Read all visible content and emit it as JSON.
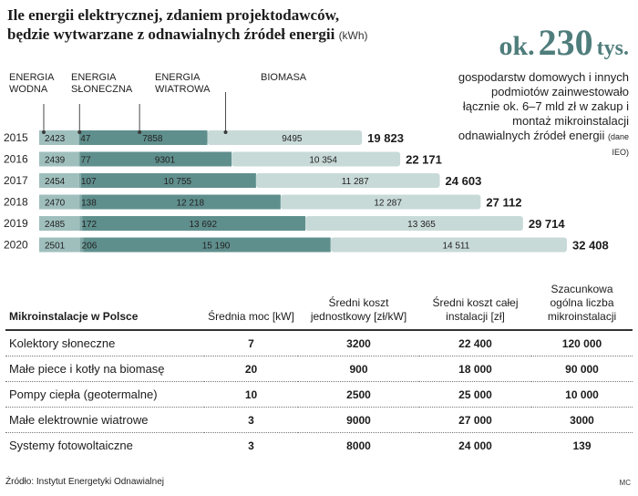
{
  "title": {
    "line1": "Ile energii elektrycznej, zdaniem projektodawców,",
    "line2": "będzie wytwarzane z odnawialnych źródeł energii",
    "unit": "(kWh)"
  },
  "side_note": {
    "prefix": "ok.",
    "number": "230",
    "suffix": "tys.",
    "text": "gospodarstw domowych i innych podmiotów zainwestowało łącznie ok. 6–7 mld zł w zakup i montaż mikroinstalacji odnawialnych źródeł energii",
    "source_small": "(dane IEO)"
  },
  "colors": {
    "wodna": "#9fbfbd",
    "sloneczna": "#7fa7a5",
    "wiatrowa": "#5f8f8d",
    "biomasa": "#c8dad8",
    "accent": "#4f7d7b"
  },
  "chart_data": {
    "type": "bar",
    "orientation": "horizontal",
    "stacked": true,
    "title": "Ile energii elektrycznej, zdaniem projektodawców, będzie wytwarzane z odnawialnych źródeł energii",
    "unit": "(kWh)",
    "categories": [
      "2015",
      "2016",
      "2017",
      "2018",
      "2019",
      "2020"
    ],
    "series": [
      {
        "name": "ENERGIA WODNA",
        "legend_lines": [
          "ENERGIA",
          "WODNA"
        ],
        "values": [
          2423,
          2439,
          2454,
          2470,
          2485,
          2501
        ],
        "value_labels": [
          "2423",
          "2439",
          "2454",
          "2470",
          "2485",
          "2501"
        ]
      },
      {
        "name": "ENERGIA SŁONECZNA",
        "legend_lines": [
          "ENERGIA",
          "SŁONECZNA"
        ],
        "values": [
          47,
          77,
          107,
          138,
          172,
          206
        ],
        "value_labels": [
          "47",
          "77",
          "107",
          "138",
          "172",
          "206"
        ]
      },
      {
        "name": "ENERGIA WIATROWA",
        "legend_lines": [
          "ENERGIA",
          "WIATROWA"
        ],
        "values": [
          7858,
          9301,
          10755,
          12218,
          13692,
          15190
        ],
        "value_labels": [
          "7858",
          "9301",
          "10 755",
          "12 218",
          "13 692",
          "15 190"
        ]
      },
      {
        "name": "BIOMASA",
        "legend_lines": [
          "BIOMASA"
        ],
        "values": [
          9495,
          10354,
          11287,
          12287,
          13365,
          14511
        ],
        "value_labels": [
          "9495",
          "10 354",
          "11 287",
          "12 287",
          "13 365",
          "14 511"
        ]
      }
    ],
    "totals": [
      19823,
      22171,
      24603,
      27112,
      29714,
      32408
    ],
    "total_labels": [
      "19 823",
      "22 171",
      "24 603",
      "27 112",
      "29 714",
      "32 408"
    ],
    "xlim": [
      0,
      32408
    ],
    "grid": false,
    "legend": "top"
  },
  "table": {
    "headers": [
      "Mikroinstalacje w Polsce",
      "Średnia moc [kW]",
      "Średni koszt jednostkowy [zł/kW]",
      "Średni koszt całej instalacji [zł]",
      "Szacunkowa ogólna liczba mikroinstalacji"
    ],
    "rows": [
      [
        "Kolektory słoneczne",
        "7",
        "3200",
        "22 400",
        "120 000"
      ],
      [
        "Małe piece i kotły na biomasę",
        "20",
        "900",
        "18 000",
        "90 000"
      ],
      [
        "Pompy ciepła (geotermalne)",
        "10",
        "2500",
        "25 000",
        "10 000"
      ],
      [
        "Małe elektrownie wiatrowe",
        "3",
        "9000",
        "27 000",
        "3000"
      ],
      [
        "Systemy fotowoltaiczne",
        "3",
        "8000",
        "24 000",
        "139"
      ]
    ]
  },
  "footer": {
    "source": "Źródło: Instytut Energetyki Odnawialnej",
    "credit": "MC"
  }
}
